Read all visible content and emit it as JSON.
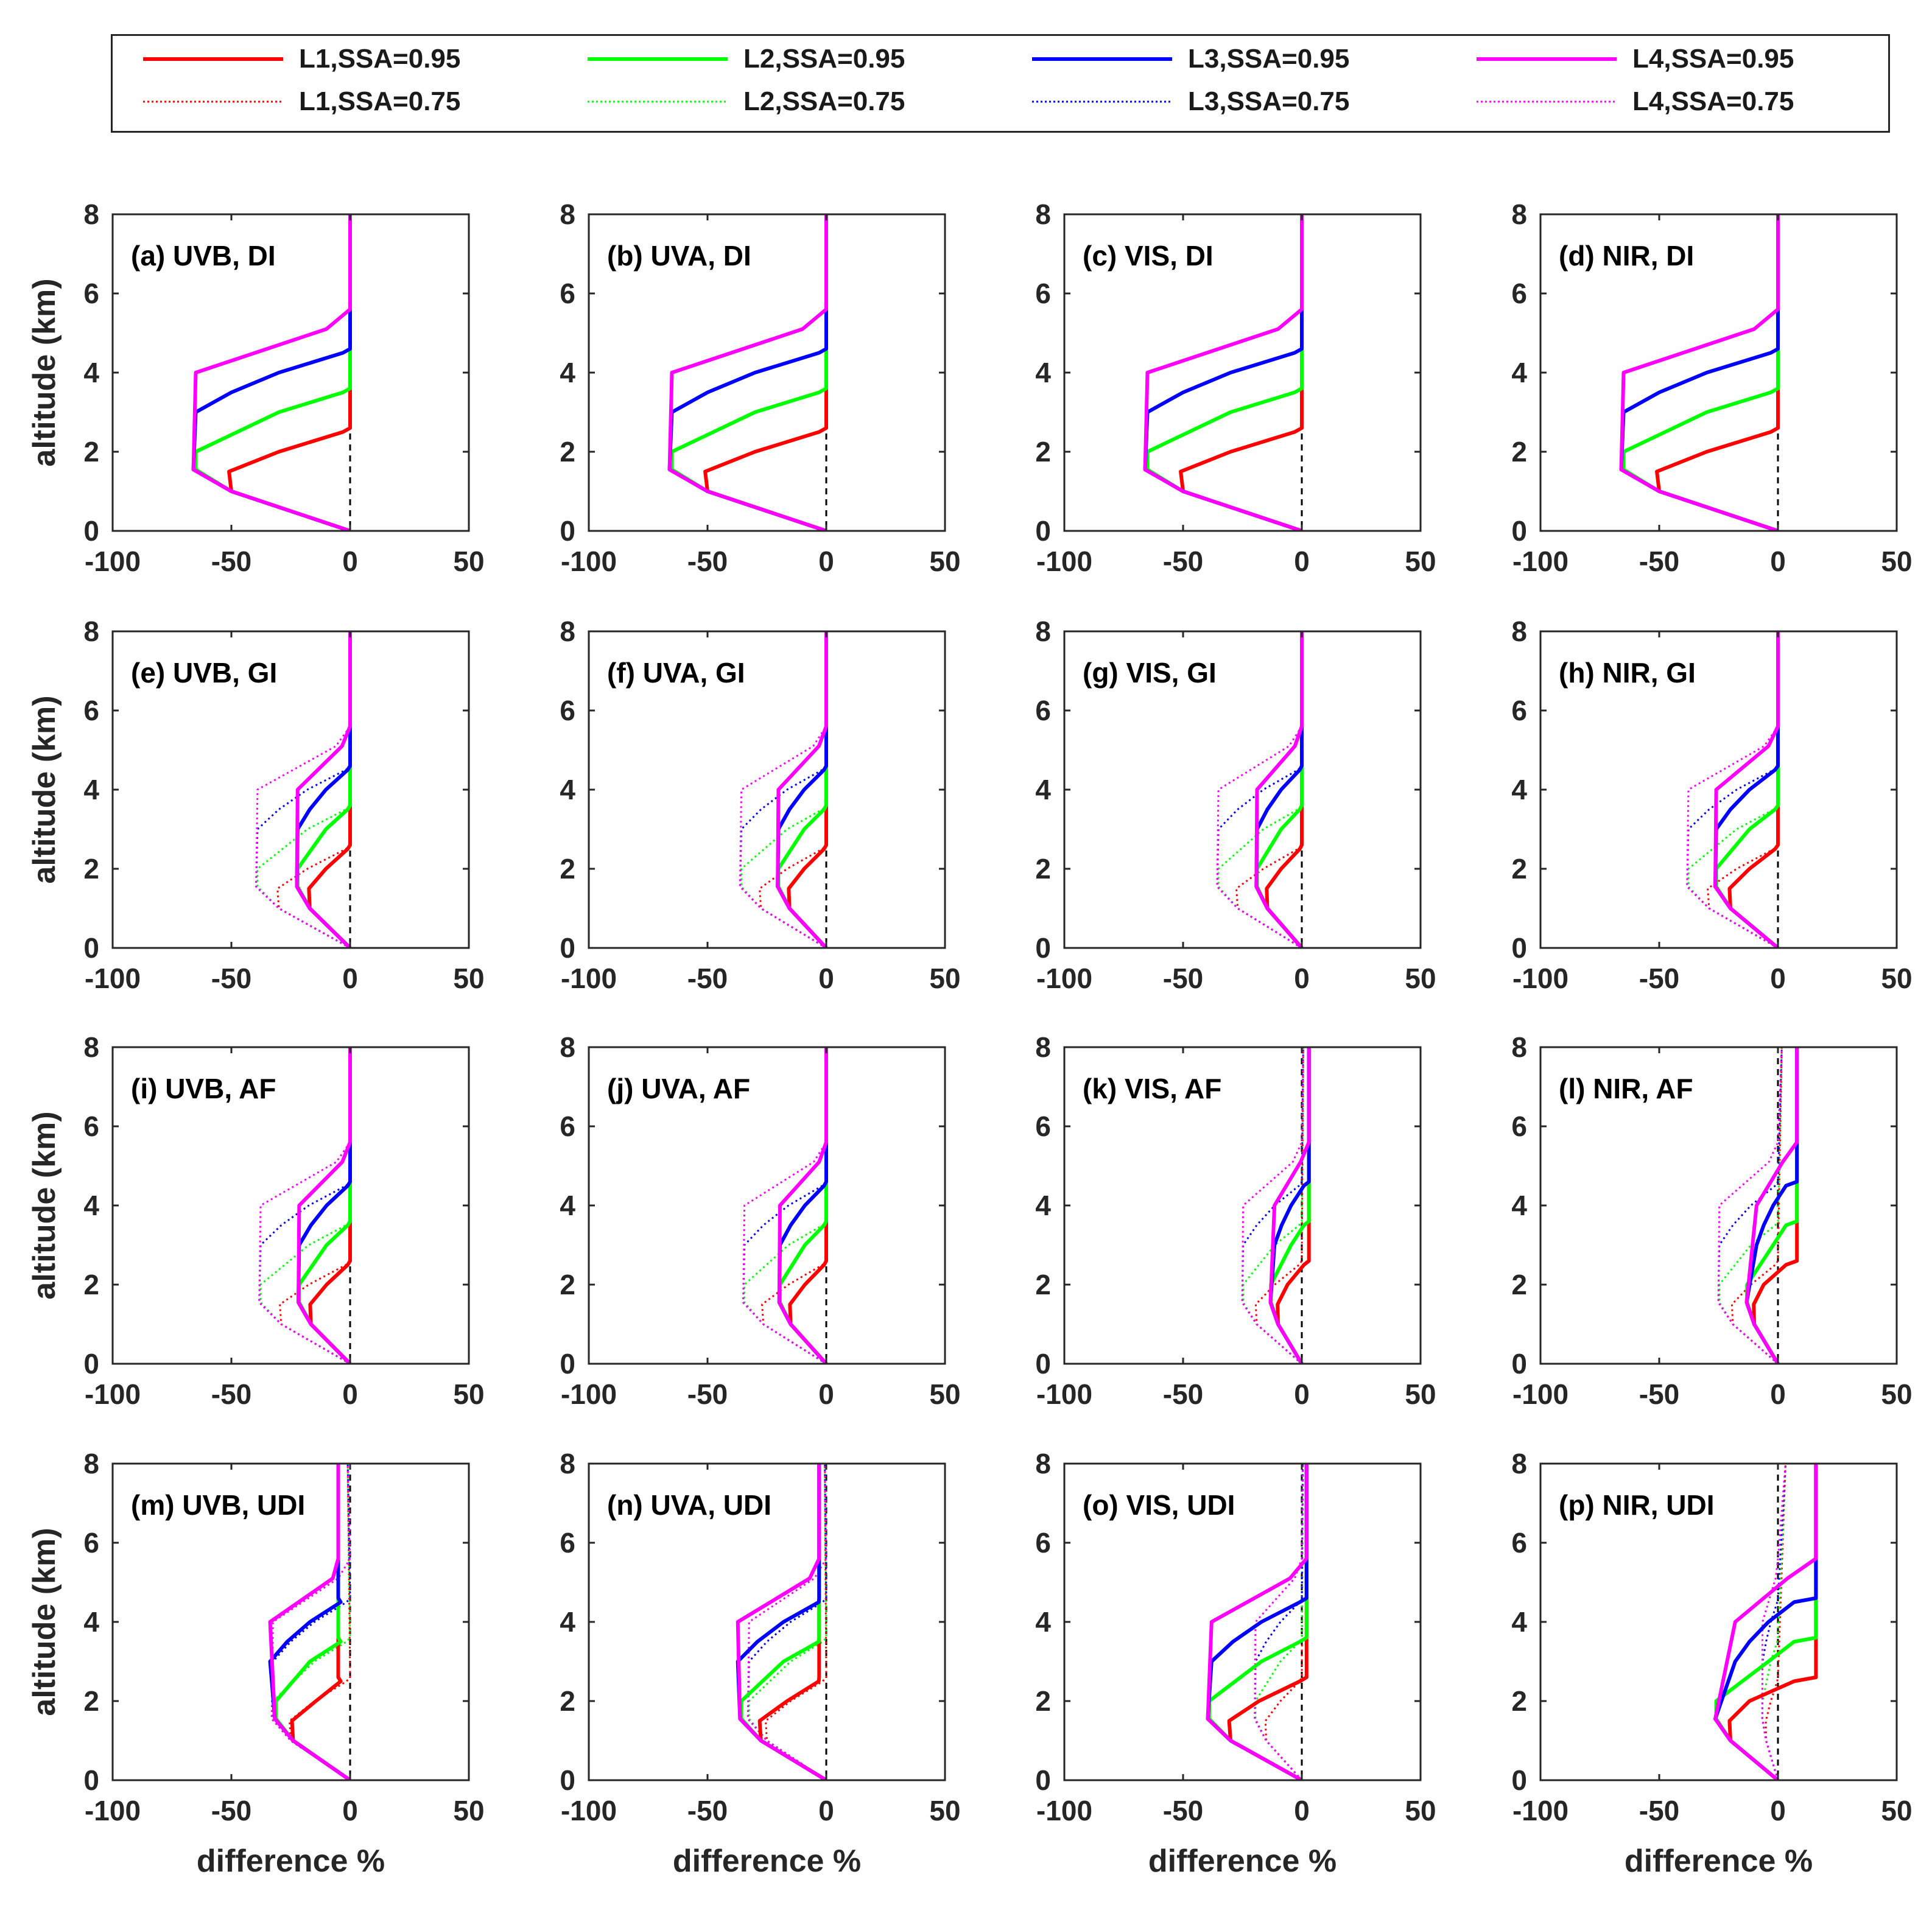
{
  "chart_data": {
    "type": "line",
    "x_ticks": [
      "-100",
      "-50",
      "0",
      "50"
    ],
    "y_ticks": [
      "0",
      "2",
      "4",
      "6",
      "8"
    ],
    "xlim": [
      -100,
      50
    ],
    "ylim": [
      0,
      8
    ],
    "ylabel": "altitude (km)",
    "xlabel": "difference %",
    "legend": [
      {
        "name": "L1,SSA=0.95",
        "color": "#ff0000",
        "style": "solid"
      },
      {
        "name": "L1,SSA=0.75",
        "color": "#ff0000",
        "style": "dotted"
      },
      {
        "name": "L2,SSA=0.95",
        "color": "#00ff00",
        "style": "solid"
      },
      {
        "name": "L2,SSA=0.75",
        "color": "#00ff00",
        "style": "dotted"
      },
      {
        "name": "L3,SSA=0.95",
        "color": "#0000ff",
        "style": "solid"
      },
      {
        "name": "L3,SSA=0.75",
        "color": "#0000ff",
        "style": "dotted"
      },
      {
        "name": "L4,SSA=0.95",
        "color": "#ff00ff",
        "style": "solid"
      },
      {
        "name": "L4,SSA=0.75",
        "color": "#ff00ff",
        "style": "dotted"
      }
    ],
    "panels": [
      {
        "title": "(a) UVB, DI",
        "scale": 1,
        "shift": 0,
        "dotted": 0
      },
      {
        "title": "(b) UVA, DI",
        "scale": 1,
        "shift": 0,
        "dotted": 0
      },
      {
        "title": "(c) VIS, DI",
        "scale": 1,
        "shift": 0,
        "dotted": 0
      },
      {
        "title": "(d) NIR, DI",
        "scale": 1,
        "shift": 0,
        "dotted": 0
      },
      {
        "title": "(e) UVB, GI",
        "scale": 0.34,
        "shift": 0,
        "dotted": 0.6
      },
      {
        "title": "(f) UVA, GI",
        "scale": 0.31,
        "shift": 0,
        "dotted": 0.55
      },
      {
        "title": "(g) VIS, GI",
        "scale": 0.29,
        "shift": 0,
        "dotted": 0.54
      },
      {
        "title": "(h) NIR, GI",
        "scale": 0.4,
        "shift": 0,
        "dotted": 0.58
      },
      {
        "title": "(i) UVB, AF",
        "scale": 0.33,
        "shift": 0,
        "dotted": 0.58
      },
      {
        "title": "(j) UVA, AF",
        "scale": 0.3,
        "shift": 0,
        "dotted": 0.53
      },
      {
        "title": "(k) VIS, AF",
        "scale": 0.2,
        "shift": 3,
        "dotted": 0.38
      },
      {
        "title": "(l) NIR, AF",
        "scale": 0.2,
        "shift": 8,
        "dotted": 0.38
      },
      {
        "title": "(m) UVB, UDI",
        "scale": 0.48,
        "shift": -5,
        "dotted": 0.5
      },
      {
        "title": "(n) UVA, UDI",
        "scale": 0.55,
        "shift": -3,
        "dotted": 0.5
      },
      {
        "title": "(o) VIS, UDI",
        "scale": 0.6,
        "shift": 2,
        "dotted": 0.3
      },
      {
        "title": "(p) NIR, UDI",
        "scale": 0.4,
        "shift": 16,
        "dotted": 0.1
      }
    ],
    "profiles": {
      "L1": {
        "x": [
          0,
          -50,
          -51,
          -30,
          -3,
          0,
          0
        ],
        "y": [
          0,
          1.0,
          1.5,
          2.0,
          2.5,
          2.6,
          8
        ]
      },
      "L2": {
        "x": [
          0,
          -50,
          -65,
          -65,
          -30,
          -3,
          0,
          0
        ],
        "y": [
          0,
          1.0,
          1.55,
          2.0,
          3.0,
          3.5,
          3.6,
          8
        ]
      },
      "L3": {
        "x": [
          0,
          -50,
          -66,
          -65,
          -50,
          -30,
          -3,
          0,
          0
        ],
        "y": [
          0,
          1.0,
          1.55,
          3.0,
          3.5,
          4.0,
          4.5,
          4.6,
          8
        ]
      },
      "L4": {
        "x": [
          0,
          -50,
          -66,
          -65,
          -50,
          -30,
          -10,
          0,
          0
        ],
        "y": [
          0,
          1.0,
          1.55,
          4.0,
          4.3,
          4.7,
          5.1,
          5.6,
          8
        ]
      }
    }
  }
}
